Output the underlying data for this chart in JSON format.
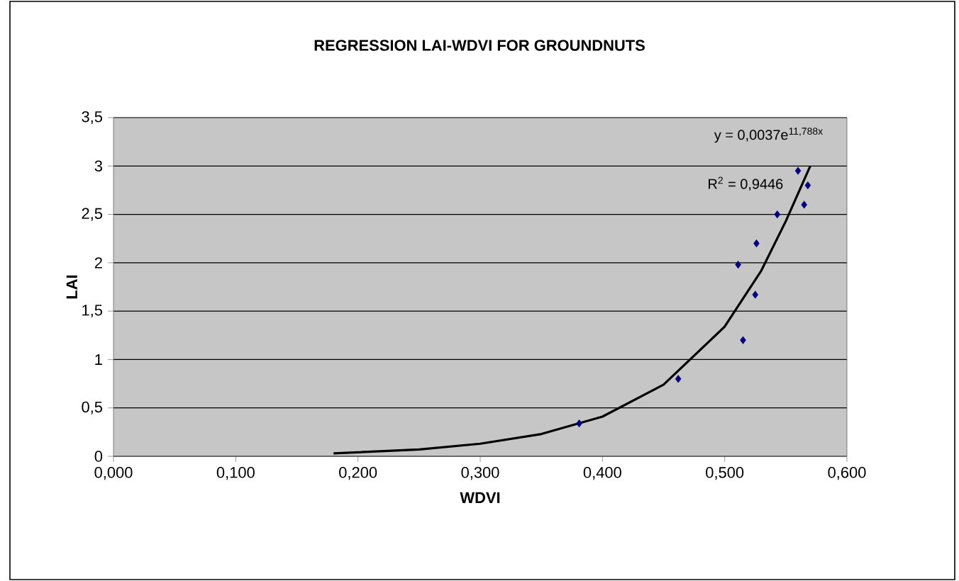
{
  "chart_data": {
    "type": "scatter",
    "title": "REGRESSION LAI-WDVI FOR GROUNDNUTS",
    "xlabel": "WDVI",
    "ylabel": "LAI",
    "series": [
      {
        "color": "#000080",
        "marker": "diamond",
        "x": [
          0.381,
          0.462,
          0.511,
          0.515,
          0.525,
          0.526,
          0.543,
          0.56,
          0.565,
          0.568
        ],
        "values": [
          0.34,
          0.8,
          1.98,
          1.2,
          1.67,
          2.2,
          2.5,
          2.95,
          2.6,
          2.8
        ]
      },
      {
        "type": "line",
        "color": "#000000",
        "marker": "none",
        "line_style": "solid",
        "x": [
          0.18,
          0.25,
          0.3,
          0.35,
          0.4,
          0.45,
          0.5,
          0.53,
          0.55,
          0.57
        ],
        "values": [
          0.03,
          0.07,
          0.13,
          0.23,
          0.41,
          0.74,
          1.34,
          1.92,
          2.43,
          3.0
        ]
      }
    ],
    "annotations": [
      "y = 0,0037e$^{11,788x}$",
      "R$^{2}$ = 0,9446"
    ],
    "xlim": [
      0,
      0.6
    ],
    "xticks": [
      {
        "value": 0,
        "label": "0,000"
      },
      {
        "value": 0.1,
        "label": "0,100"
      },
      {
        "value": 0.2,
        "label": "0,200"
      },
      {
        "value": 0.3,
        "label": "0,300"
      },
      {
        "value": 0.4,
        "label": "0,400"
      },
      {
        "value": 0.5,
        "label": "0,500"
      },
      {
        "value": 0.6,
        "label": "0,600"
      }
    ],
    "ylim": [
      0,
      3.5
    ],
    "yticks": [
      0,
      {
        "value": 0.5,
        "label": "0,5"
      },
      1,
      {
        "value": 1.5,
        "label": "1,5"
      },
      2,
      {
        "value": 2.5,
        "label": "2,5"
      },
      3,
      {
        "value": 3.5,
        "label": "3,5"
      }
    ],
    "grid": "y"
  }
}
